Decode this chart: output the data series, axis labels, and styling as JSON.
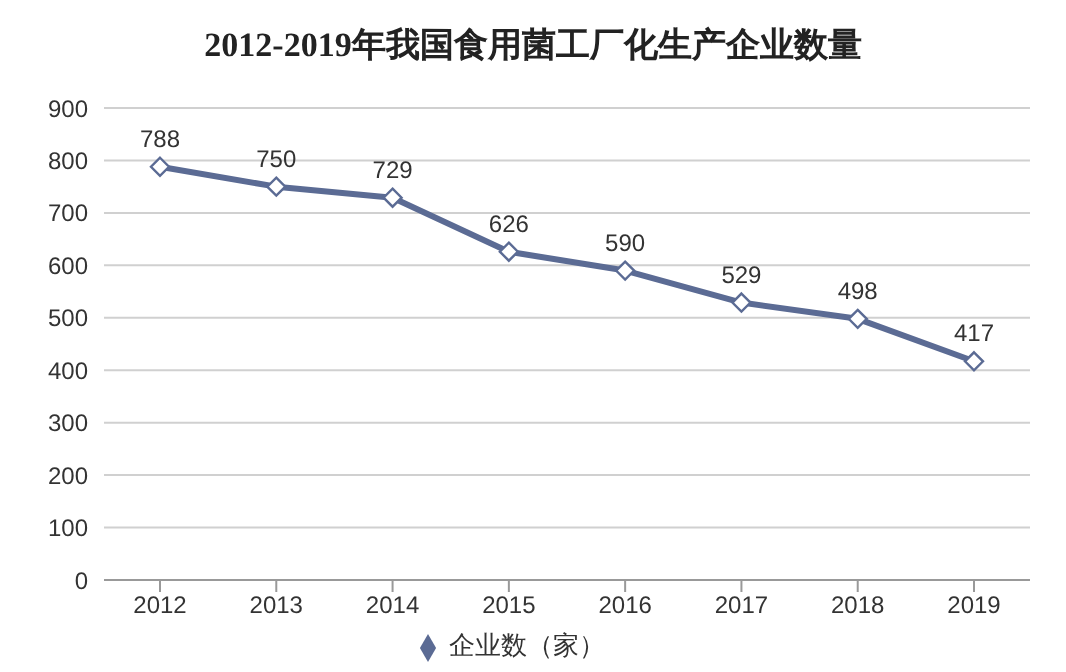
{
  "chart_data": {
    "type": "line",
    "title": "2012-2019年我国食用菌工厂化生产企业数量",
    "categories": [
      "2012",
      "2013",
      "2014",
      "2015",
      "2016",
      "2017",
      "2018",
      "2019"
    ],
    "series": [
      {
        "name": "企业数（家）",
        "color": "#5b6b94",
        "values": [
          788,
          750,
          729,
          626,
          590,
          529,
          498,
          417
        ]
      }
    ],
    "ylim": [
      0,
      900
    ],
    "yticks": [
      0,
      100,
      200,
      300,
      400,
      500,
      600,
      700,
      800,
      900
    ],
    "grid": "y",
    "legend": "bottom",
    "marker": "diamond",
    "line_style": "solid",
    "data_labels": true
  }
}
